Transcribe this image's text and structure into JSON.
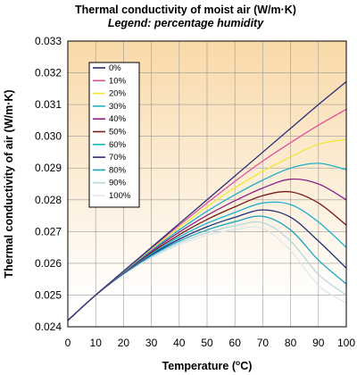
{
  "chart_data": {
    "type": "line",
    "title": "Thermal conductivity of moist air (W/m·K)",
    "subtitle": "Legend: percentage humidity",
    "xlabel_main": "Temperature (",
    "xlabel_sup": "o",
    "xlabel_end": "C)",
    "ylabel": "Thermal conductivity of air (W/m·K)",
    "xlim": [
      0,
      100
    ],
    "ylim": [
      0.024,
      0.033
    ],
    "xticks": [
      "0",
      "10",
      "20",
      "30",
      "40",
      "50",
      "60",
      "70",
      "80",
      "90",
      "100"
    ],
    "yticks": [
      "0.024",
      "0.025",
      "0.026",
      "0.027",
      "0.028",
      "0.029",
      "0.030",
      "0.031",
      "0.032",
      "0.033"
    ],
    "grid": true,
    "legend_position": "top-left",
    "background_gradient": [
      "#f9d9a8",
      "#ffffff"
    ],
    "x": [
      0,
      10,
      20,
      30,
      40,
      50,
      60,
      70,
      80,
      90,
      100
    ],
    "series": [
      {
        "name": "0%",
        "color": "#2b2d7a",
        "values": [
          0.0242,
          0.025,
          0.02575,
          0.0265,
          0.02725,
          0.028,
          0.02875,
          0.0295,
          0.03025,
          0.031,
          0.03172
        ]
      },
      {
        "name": "10%",
        "color": "#e0509a",
        "values": [
          0.0242,
          0.025,
          0.02575,
          0.02648,
          0.0272,
          0.0279,
          0.02858,
          0.02922,
          0.0298,
          0.03035,
          0.03085
        ]
      },
      {
        "name": "20%",
        "color": "#f0e830",
        "values": [
          0.0242,
          0.025,
          0.02574,
          0.02645,
          0.02713,
          0.02778,
          0.02838,
          0.0289,
          0.02935,
          0.02975,
          0.0299
        ]
      },
      {
        "name": "30%",
        "color": "#20b0c8",
        "values": [
          0.0242,
          0.025,
          0.02572,
          0.02641,
          0.02705,
          0.02764,
          0.02816,
          0.02862,
          0.029,
          0.02915,
          0.02895
        ]
      },
      {
        "name": "40%",
        "color": "#8a2488",
        "values": [
          0.0242,
          0.025,
          0.02571,
          0.02638,
          0.02698,
          0.02751,
          0.02797,
          0.02837,
          0.02865,
          0.0285,
          0.028
        ]
      },
      {
        "name": "50%",
        "color": "#7a1a1a",
        "values": [
          0.0242,
          0.025,
          0.0257,
          0.02634,
          0.0269,
          0.02738,
          0.02778,
          0.02813,
          0.02825,
          0.0279,
          0.0272
        ]
      },
      {
        "name": "60%",
        "color": "#1ab0d0",
        "values": [
          0.0242,
          0.025,
          0.02569,
          0.0263,
          0.02683,
          0.02726,
          0.0276,
          0.0279,
          0.02785,
          0.0273,
          0.0265
        ]
      },
      {
        "name": "70%",
        "color": "#20307a",
        "values": [
          0.0242,
          0.025,
          0.02568,
          0.02627,
          0.02676,
          0.02715,
          0.02745,
          0.02768,
          0.02745,
          0.0267,
          0.02585
        ]
      },
      {
        "name": "80%",
        "color": "#18a4c0",
        "values": [
          0.0242,
          0.025,
          0.02567,
          0.02624,
          0.0267,
          0.02705,
          0.02731,
          0.02748,
          0.02705,
          0.0261,
          0.02535
        ]
      },
      {
        "name": "90%",
        "color": "#b7d6e2",
        "values": [
          0.0242,
          0.025,
          0.02566,
          0.0262,
          0.02664,
          0.02696,
          0.02718,
          0.02728,
          0.0267,
          0.02565,
          0.025
        ]
      },
      {
        "name": "100%",
        "color": "#dbe7ee",
        "values": [
          0.0242,
          0.025,
          0.02565,
          0.02617,
          0.02658,
          0.02688,
          0.02706,
          0.0271,
          0.0264,
          0.0253,
          0.02475
        ]
      }
    ]
  }
}
